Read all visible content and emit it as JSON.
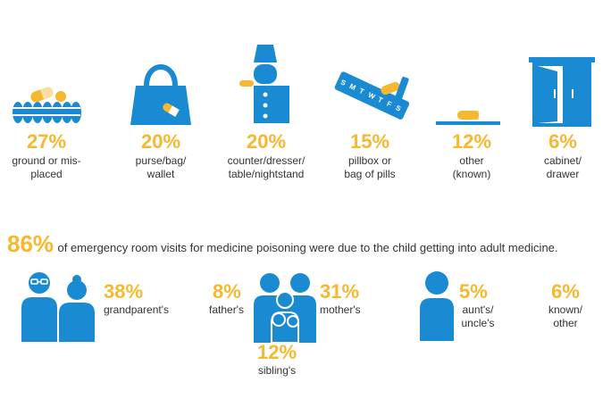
{
  "colors": {
    "accent": "#f5b82e",
    "icon_blue": "#1a8ad3",
    "text": "#333333"
  },
  "locations": [
    {
      "icon": "ground-pills-icon",
      "percent": "27%",
      "label": "ground or mis-\nplaced"
    },
    {
      "icon": "purse-icon",
      "percent": "20%",
      "label": "purse/bag/\nwallet"
    },
    {
      "icon": "nightstand-icon",
      "percent": "20%",
      "label": "counter/dresser/\ntable/nightstand"
    },
    {
      "icon": "pillbox-icon",
      "percent": "15%",
      "label": "pillbox or\nbag of pills"
    },
    {
      "icon": "pill-icon",
      "percent": "12%",
      "label": "other\n(known)"
    },
    {
      "icon": "cabinet-icon",
      "percent": "6%",
      "label": "cabinet/\ndrawer"
    }
  ],
  "headline": {
    "percent": "86%",
    "text": "of emergency room visits for medicine poisoning were due to the child getting into adult medicine."
  },
  "owners": {
    "grandparent": {
      "percent": "38%",
      "label": "grandparent's"
    },
    "father": {
      "percent": "8%",
      "label": "father's"
    },
    "mother": {
      "percent": "31%",
      "label": "mother's"
    },
    "sibling": {
      "percent": "12%",
      "label": "sibling's"
    },
    "aunt_uncle": {
      "percent": "5%",
      "label": "aunt's/\nuncle's"
    },
    "other": {
      "percent": "6%",
      "label": "known/\nother"
    }
  }
}
